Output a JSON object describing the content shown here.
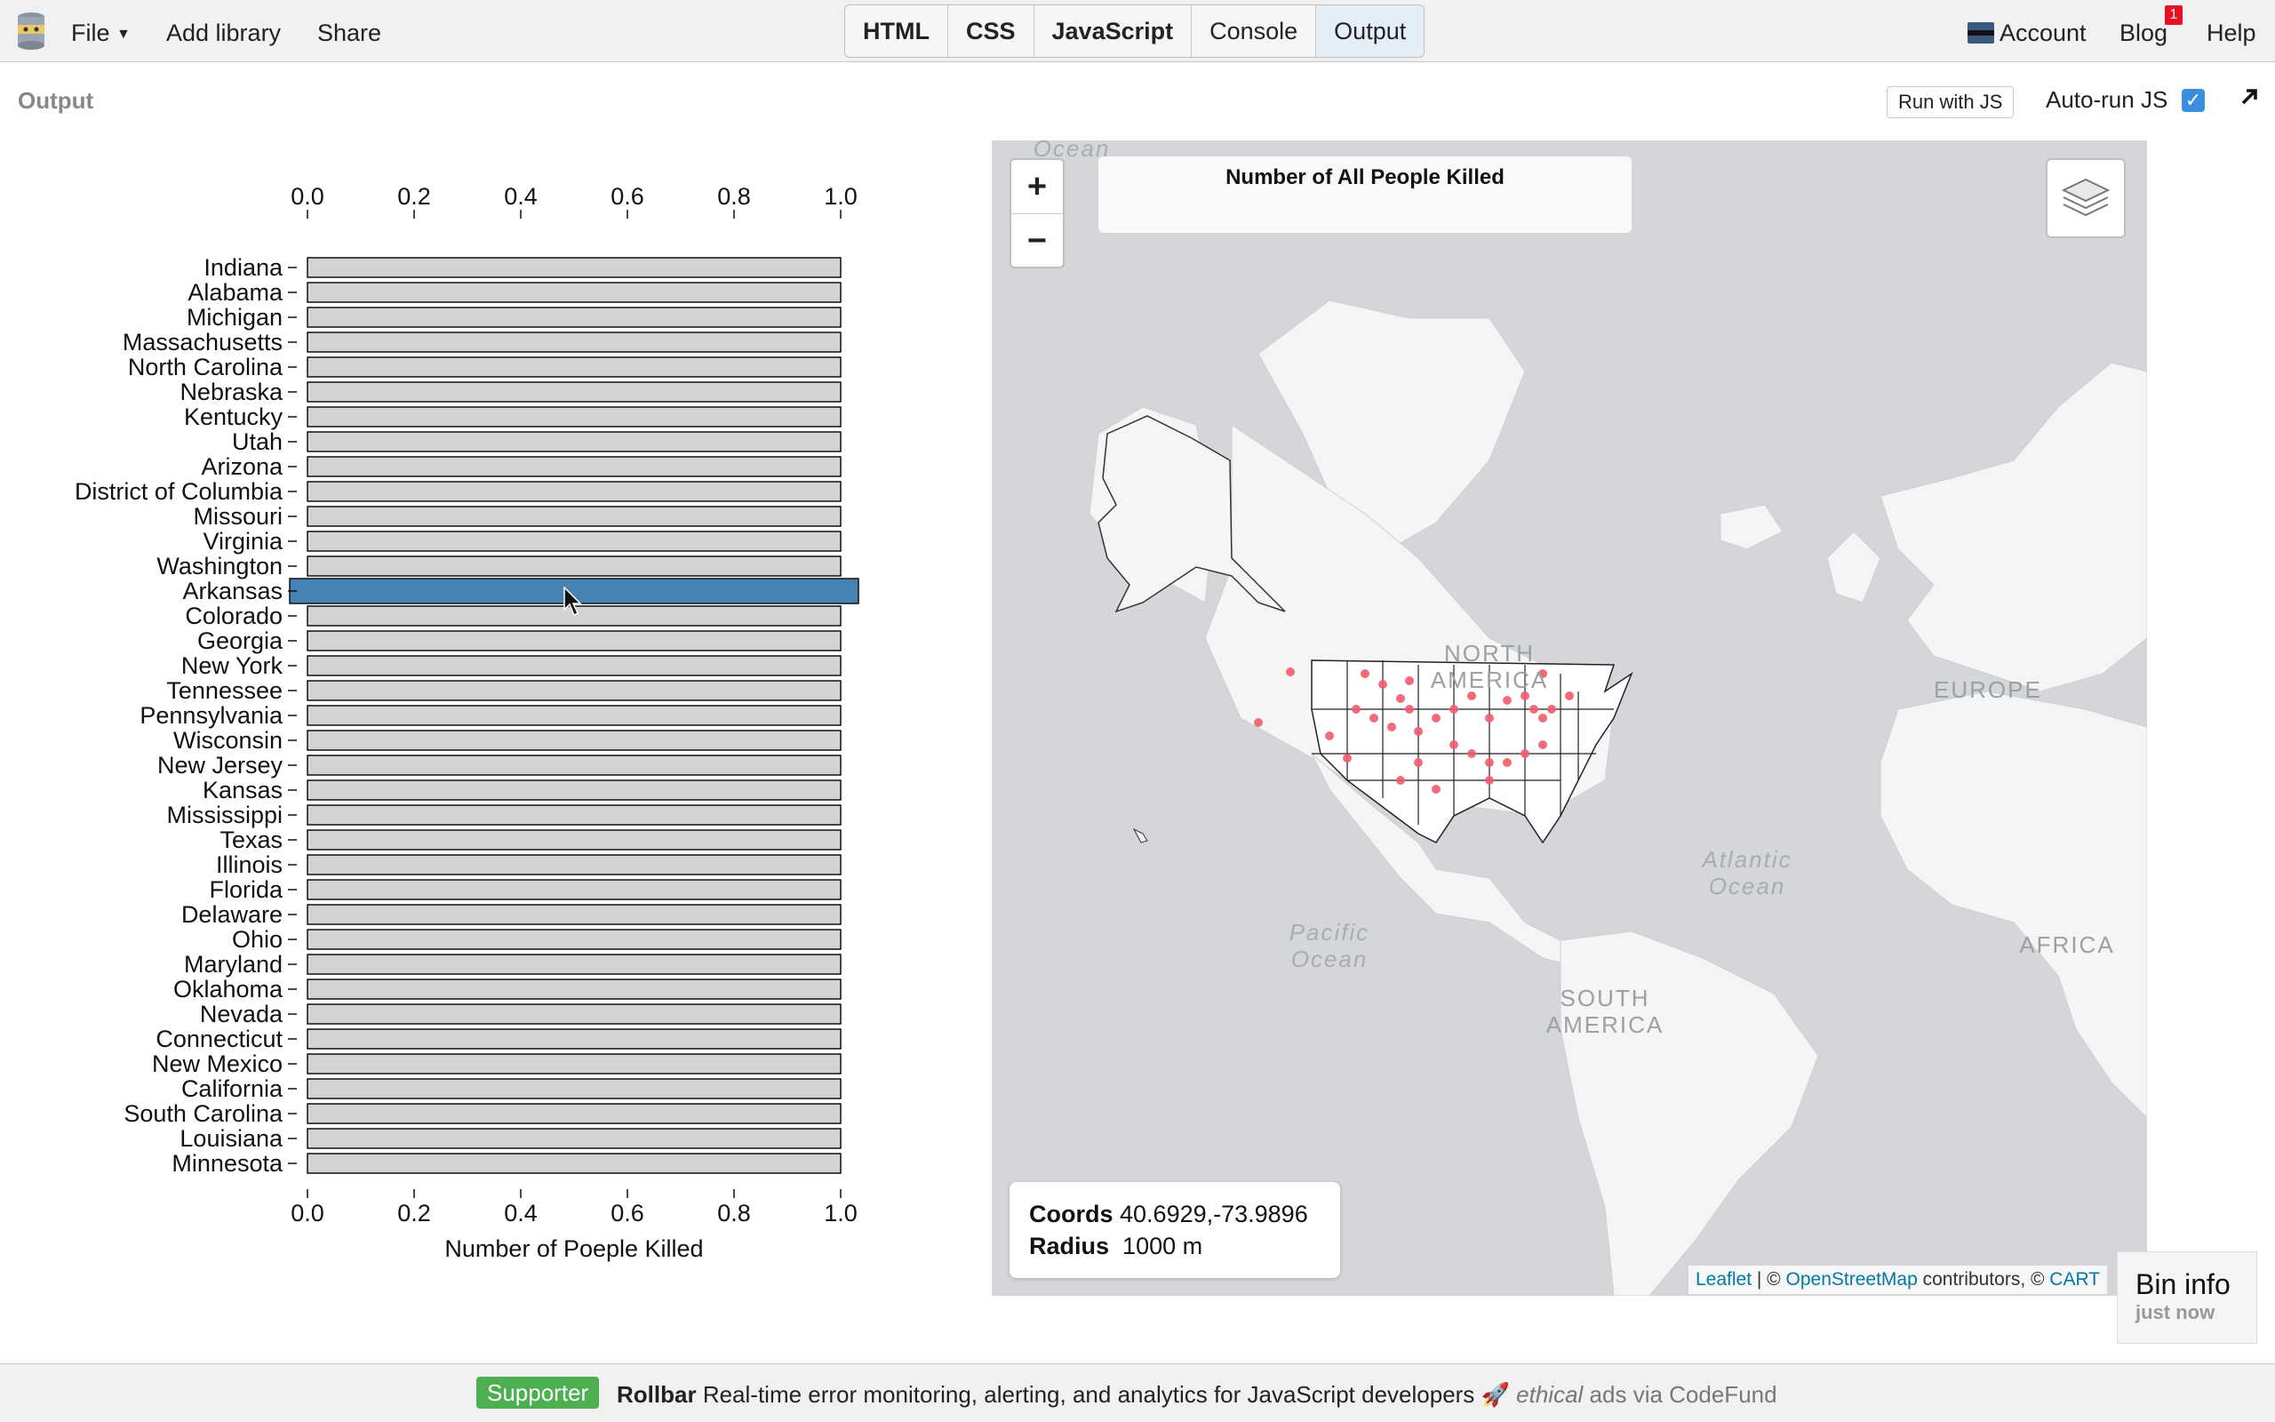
{
  "topbar": {
    "file_label": "File",
    "add_library_label": "Add library",
    "share_label": "Share",
    "tabs": [
      {
        "label": "HTML",
        "active": false
      },
      {
        "label": "CSS",
        "active": false
      },
      {
        "label": "JavaScript",
        "active": false
      },
      {
        "label": "Console",
        "active": false
      },
      {
        "label": "Output",
        "active": true
      }
    ],
    "account_label": "Account",
    "blog_label": "Blog",
    "blog_badge": "1",
    "help_label": "Help"
  },
  "output_panel": {
    "title": "Output",
    "run_button_label": "Run with JS",
    "autorun_label": "Auto-run JS",
    "autorun_checked": true
  },
  "chart_data": {
    "type": "bar",
    "orientation": "horizontal",
    "categories": [
      "Indiana",
      "Alabama",
      "Michigan",
      "Massachusetts",
      "North Carolina",
      "Nebraska",
      "Kentucky",
      "Utah",
      "Arizona",
      "District of Columbia",
      "Missouri",
      "Virginia",
      "Washington",
      "Arkansas",
      "Colorado",
      "Georgia",
      "New York",
      "Tennessee",
      "Pennsylvania",
      "Wisconsin",
      "New Jersey",
      "Kansas",
      "Mississippi",
      "Texas",
      "Illinois",
      "Florida",
      "Delaware",
      "Ohio",
      "Maryland",
      "Oklahoma",
      "Nevada",
      "Connecticut",
      "New Mexico",
      "California",
      "South Carolina",
      "Louisiana",
      "Minnesota"
    ],
    "values": [
      1,
      1,
      1,
      1,
      1,
      1,
      1,
      1,
      1,
      1,
      1,
      1,
      1,
      1,
      1,
      1,
      1,
      1,
      1,
      1,
      1,
      1,
      1,
      1,
      1,
      1,
      1,
      1,
      1,
      1,
      1,
      1,
      1,
      1,
      1,
      1,
      1
    ],
    "highlighted": "Arkansas",
    "xlabel": "Number of Poeple Killed",
    "xlim": [
      0,
      1
    ],
    "xticks": [
      "0.0",
      "0.2",
      "0.4",
      "0.6",
      "0.8",
      "1.0"
    ],
    "bar_color": "#d3d3d3",
    "highlight_color": "#4682b4",
    "axis_position": "top and bottom"
  },
  "map": {
    "title": "Number of All People Killed",
    "zoom_in_label": "+",
    "zoom_out_label": "−",
    "layers_icon": "layers-icon",
    "coords_label": "Coords",
    "coords_value": "40.6929,-73.9896",
    "radius_label": "Radius",
    "radius_value": "1000 m",
    "labels": {
      "north_america": "NORTH AMERICA",
      "europe": "EUROPE",
      "africa": "AFRICA",
      "south_america_1": "SOUTH",
      "south_america_2": "AMERICA",
      "atlantic_1": "Atlantic",
      "atlantic_2": "Ocean",
      "pacific_1": "Pacific",
      "pacific_2": "Ocean",
      "ocean_top": "Ocean"
    },
    "attribution": {
      "leaflet": "Leaflet",
      "sep": " | © ",
      "osm": "OpenStreetMap",
      "contrib": " contributors, © ",
      "carto": "CART"
    },
    "dot_color": "#ef5b6d"
  },
  "bin_info": {
    "title": "Bin info",
    "subtitle": "just now"
  },
  "footer": {
    "supporter_label": "Supporter",
    "sponsor": "Rollbar",
    "ad_text": "Real-time error monitoring, alerting, and analytics for JavaScript developers 🚀",
    "ethical": "ethical",
    "via": "ads via CodeFund"
  }
}
